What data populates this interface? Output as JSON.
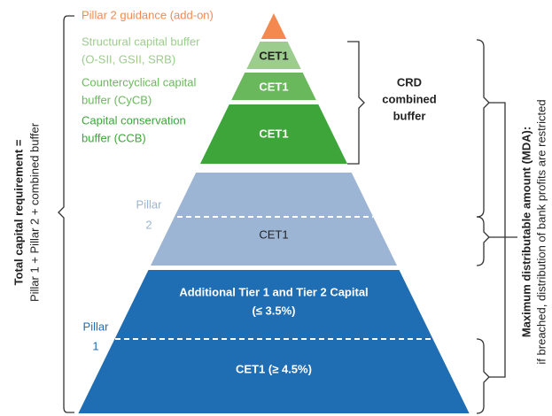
{
  "pillar2_guidance": "Pillar 2 guidance (add-on)",
  "buffers": [
    {
      "label_lines": [
        "Structural capital buffer",
        "(O-SII, GSII, SRB)"
      ],
      "layer_label": "CET1"
    },
    {
      "label_lines": [
        "Countercyclical capital",
        "buffer (CyCB)"
      ],
      "layer_label": "CET1"
    },
    {
      "label_lines": [
        "Capital conservation",
        "buffer (CCB)"
      ],
      "layer_label": "CET1"
    }
  ],
  "crd_combined_buffer": [
    "CRD",
    "combined",
    "buffer"
  ],
  "pillar2": {
    "label_lines": [
      "Pillar",
      "2"
    ],
    "layer_label": "CET1"
  },
  "pillar1": {
    "label_lines": [
      "Pillar",
      "1"
    ],
    "upper_label_lines": [
      "Additional Tier 1 and Tier 2 Capital",
      "(≤ 3.5%)"
    ],
    "lower_label": "CET1 (≥ 4.5%)"
  },
  "total_capital_requirement": [
    "Total capital requirement =",
    "Pillar 1 + Pillar 2 + combined buffer"
  ],
  "mda": [
    "Maximum distributable amount (MDA):",
    "if breached, distribution of bank profits are restricted"
  ]
}
